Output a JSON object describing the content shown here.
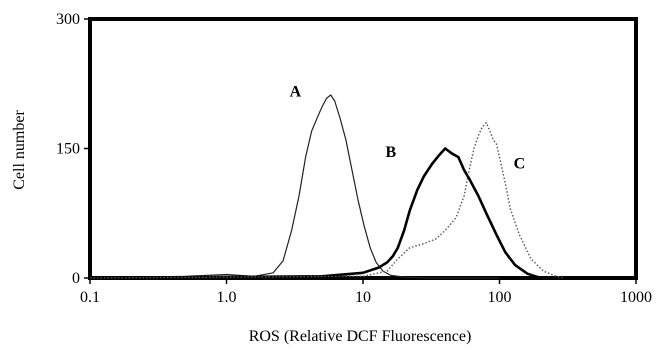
{
  "chart_data": {
    "type": "line",
    "xscale": "log",
    "xlim": [
      0.1,
      1000
    ],
    "ylim": [
      0,
      300
    ],
    "xlabel": "ROS (Relative DCF Fluorescence)",
    "ylabel": "Cell number",
    "x_ticks": [
      "0.1",
      "1.0",
      "10",
      "100",
      "1000"
    ],
    "y_ticks": [
      "0",
      "150",
      "300"
    ],
    "grid": false,
    "series": [
      {
        "name": "A",
        "style": "thin",
        "x": [
          0.1,
          0.5,
          1.0,
          1.6,
          2.2,
          2.6,
          3.0,
          3.4,
          3.8,
          4.2,
          4.6,
          5.0,
          5.4,
          5.8,
          6.2,
          6.8,
          7.5,
          8.3,
          9.2,
          10.2,
          11.3,
          12.5,
          14.0,
          16.0,
          20.0,
          30.0,
          100.0
        ],
        "y": [
          0,
          2,
          4,
          2,
          6,
          20,
          55,
          95,
          140,
          170,
          185,
          198,
          208,
          212,
          205,
          185,
          160,
          125,
          90,
          60,
          35,
          18,
          8,
          3,
          1,
          0,
          0
        ]
      },
      {
        "name": "B",
        "style": "bold",
        "x": [
          0.1,
          5.0,
          10.0,
          13.0,
          15.0,
          16.5,
          18.0,
          20.0,
          22.0,
          25.0,
          28.0,
          32.0,
          36.0,
          40.0,
          45.0,
          50.0,
          55.0,
          60.0,
          70.0,
          80.0,
          95.0,
          110.0,
          130.0,
          160.0,
          200.0
        ],
        "y": [
          0,
          2,
          6,
          12,
          18,
          25,
          35,
          55,
          78,
          102,
          118,
          132,
          142,
          150,
          144,
          140,
          125,
          115,
          95,
          75,
          50,
          30,
          15,
          5,
          0
        ]
      },
      {
        "name": "C",
        "style": "dotted",
        "x": [
          0.1,
          10.0,
          15.0,
          18.0,
          22.0,
          28.0,
          34.0,
          40.0,
          48.0,
          55.0,
          60.0,
          65.0,
          70.0,
          75.0,
          80.0,
          85.0,
          90.0,
          95.0,
          100.0,
          110.0,
          120.0,
          140.0,
          170.0,
          210.0,
          260.0,
          300.0
        ],
        "y": [
          0,
          2,
          8,
          22,
          35,
          40,
          45,
          55,
          70,
          95,
          125,
          150,
          165,
          175,
          180,
          170,
          160,
          155,
          140,
          110,
          80,
          50,
          22,
          8,
          2,
          0
        ]
      }
    ]
  }
}
